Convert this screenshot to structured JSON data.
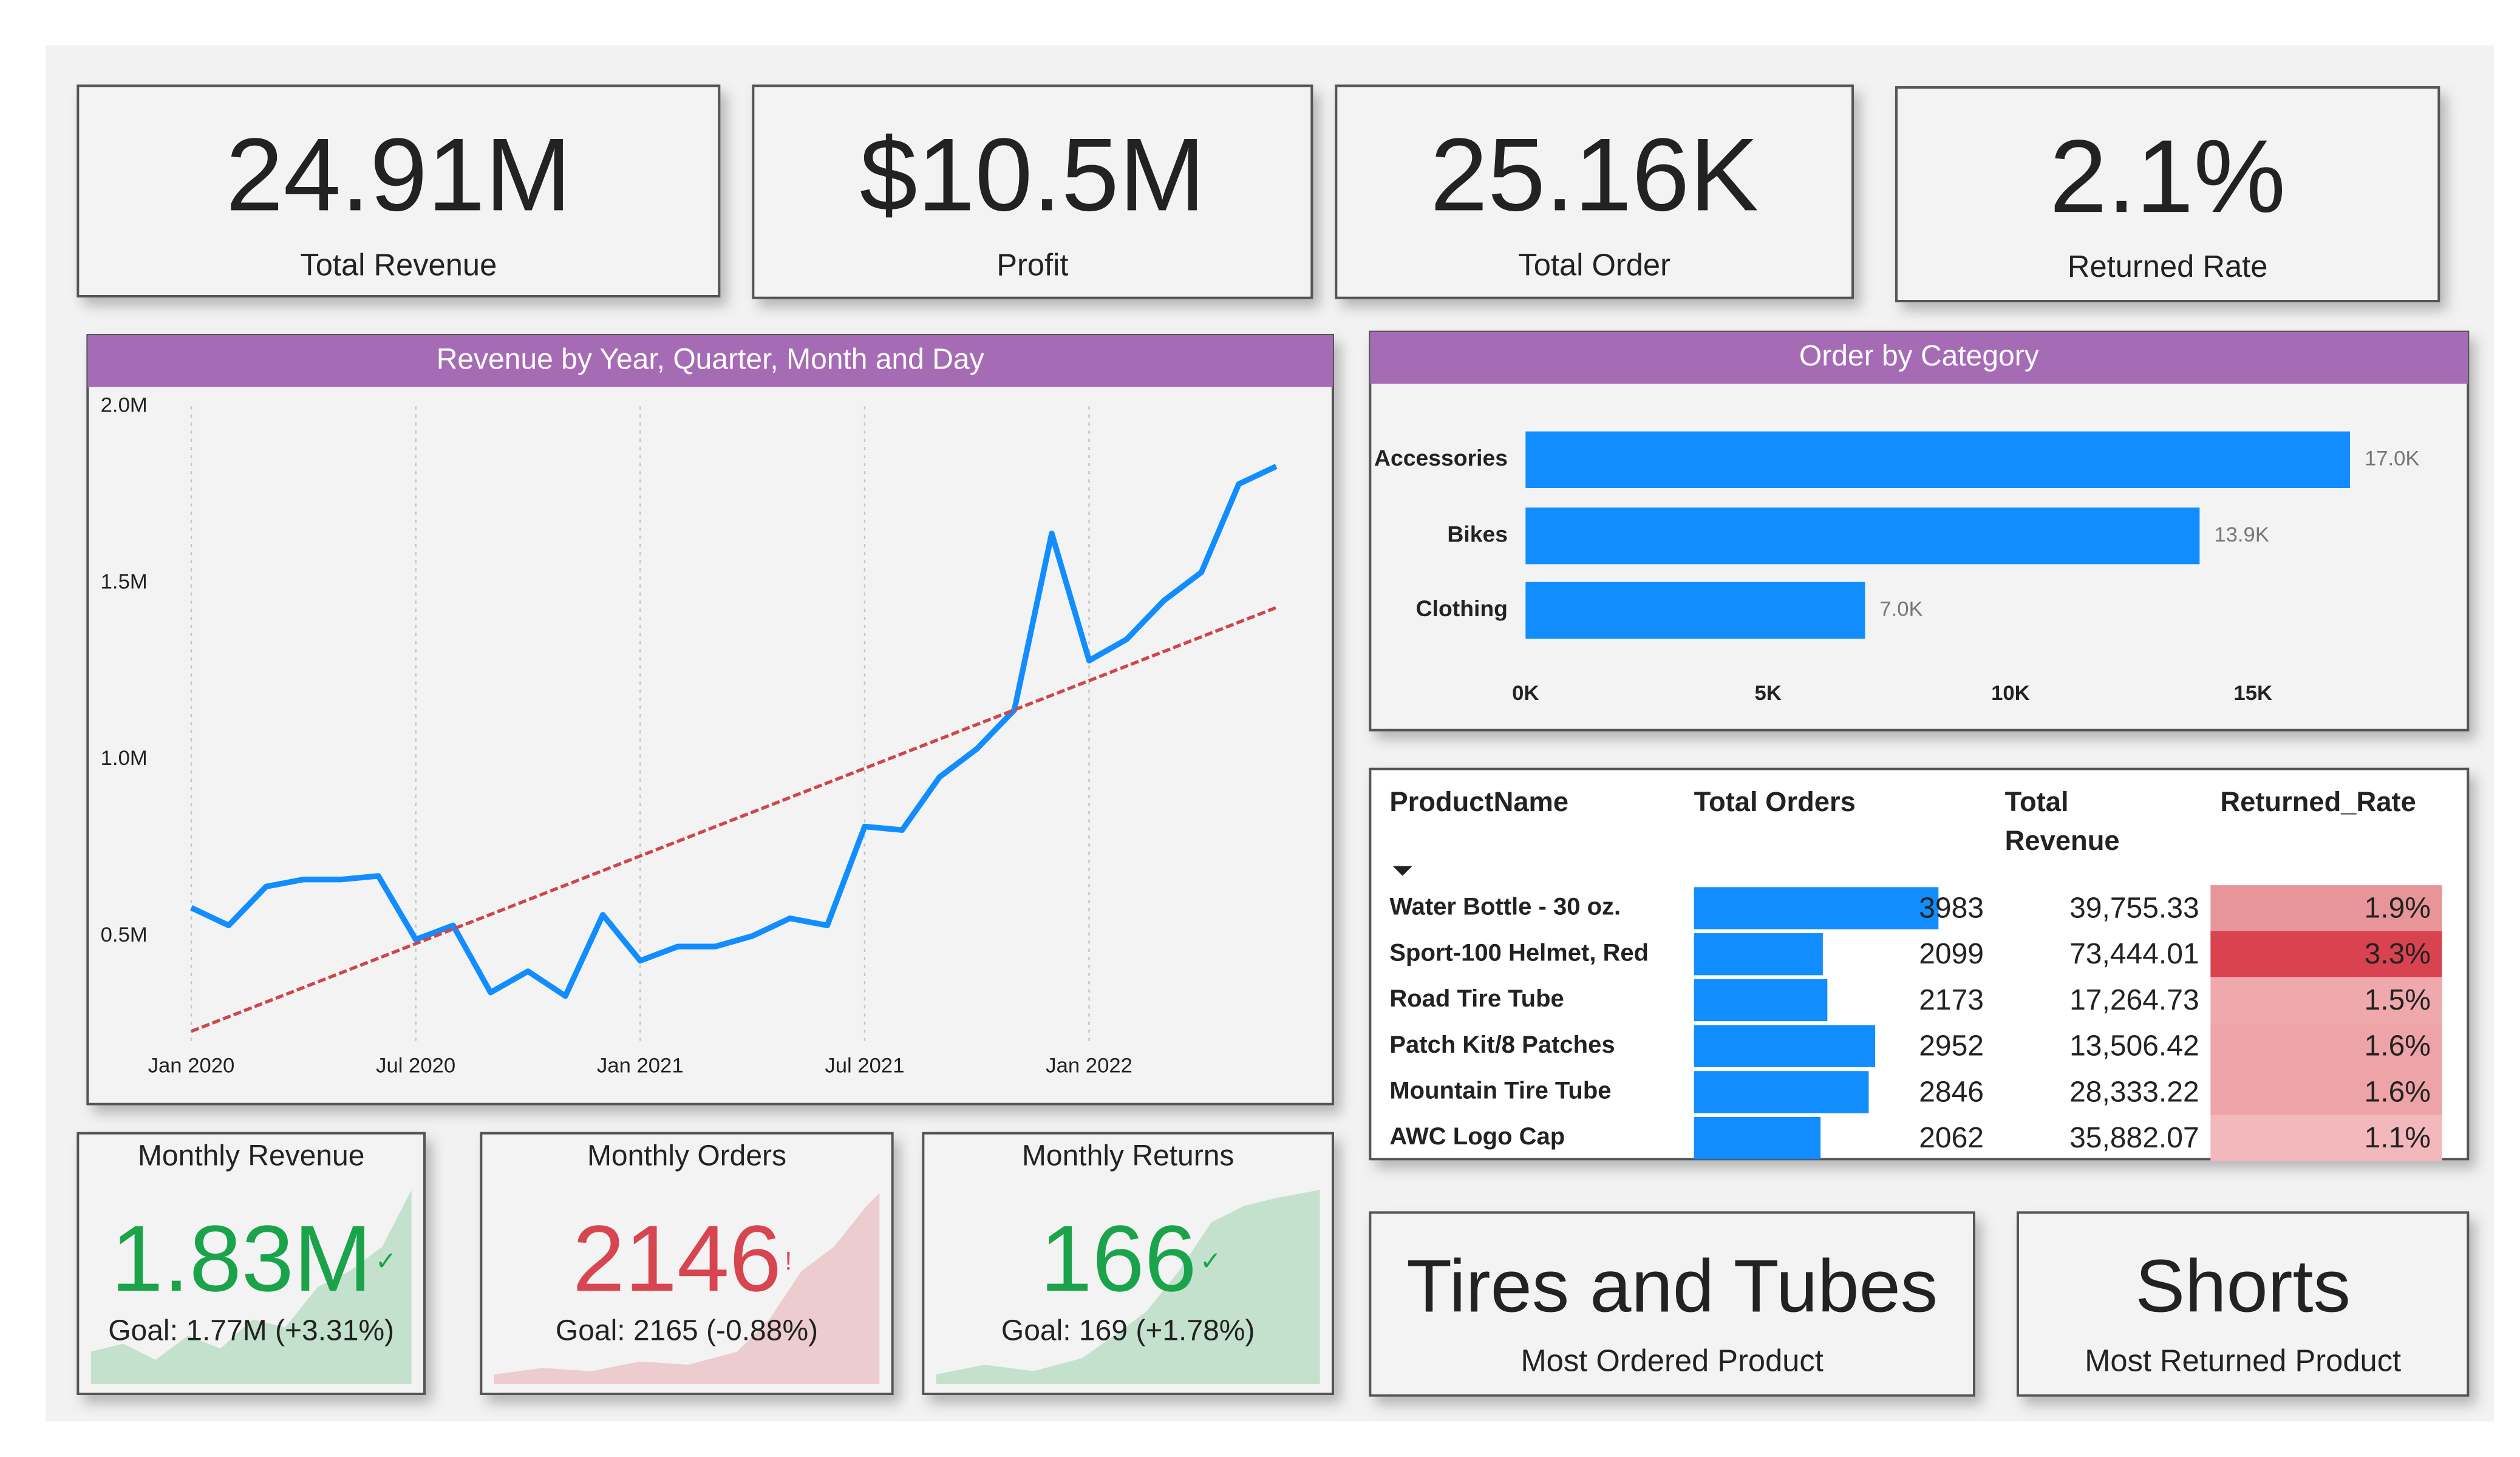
{
  "kpis": [
    {
      "value": "24.91M",
      "label": "Total Revenue"
    },
    {
      "value": "$10.5M",
      "label": "Profit"
    },
    {
      "value": "25.16K",
      "label": "Total Order"
    },
    {
      "value": "2.1%",
      "label": "Returned Rate"
    }
  ],
  "chart_data": [
    {
      "type": "line",
      "title": "Revenue by Year, Quarter, Month and Day",
      "categories": [
        "Jan 2020",
        null,
        null,
        null,
        null,
        null,
        "Jul 2020",
        null,
        null,
        null,
        null,
        null,
        "Jan 2021",
        null,
        null,
        null,
        null,
        null,
        "Jul 2021",
        null,
        null,
        null,
        null,
        null,
        "Jan 2022",
        null,
        null,
        null,
        null,
        null
      ],
      "values": [
        0.58,
        0.53,
        0.64,
        0.66,
        0.66,
        0.67,
        0.49,
        0.53,
        0.34,
        0.4,
        0.33,
        0.56,
        0.43,
        0.47,
        0.47,
        0.5,
        0.55,
        0.53,
        0.81,
        0.8,
        0.95,
        1.03,
        1.14,
        1.64,
        1.28,
        1.34,
        1.45,
        1.53,
        1.78,
        1.83
      ],
      "color": "#118dff",
      "trendline": [
        0.23,
        1.43
      ],
      "trend_color": "#d0454b",
      "ylim": [
        0.2,
        2.0
      ],
      "yticks": [
        {
          "value": 0.5,
          "label": "0.5M"
        },
        {
          "value": 1.0,
          "label": "1.0M"
        },
        {
          "value": 1.5,
          "label": "1.5M"
        },
        {
          "value": 2.0,
          "label": "2.0M"
        }
      ],
      "grid": true
    },
    {
      "type": "hbar",
      "title": "Order by Category",
      "categories": [
        "Accessories",
        "Bikes",
        "Clothing"
      ],
      "values": [
        17000,
        13900,
        7000
      ],
      "value_labels": [
        "17.0K",
        "13.9K",
        "7.0K"
      ],
      "color": "#118dff",
      "xlim": [
        0,
        19000
      ],
      "xticks": [
        {
          "value": 0,
          "label": "0K"
        },
        {
          "value": 5000,
          "label": "5K"
        },
        {
          "value": 10000,
          "label": "10K"
        },
        {
          "value": 15000,
          "label": "15K"
        }
      ]
    }
  ],
  "table": {
    "columns": [
      "ProductName",
      "Total Orders",
      "Total Revenue",
      "Returned_Rate"
    ],
    "rows": [
      [
        "Water Bottle - 30 oz.",
        3983,
        "39,755.33",
        "1.9%"
      ],
      [
        "Sport-100 Helmet, Red",
        2099,
        "73,444.01",
        "3.3%"
      ],
      [
        "Road Tire Tube",
        2173,
        "17,264.73",
        "1.5%"
      ],
      [
        "Patch Kit/8 Patches",
        2952,
        "13,506.42",
        "1.6%"
      ],
      [
        "Mountain Tire Tube",
        2846,
        "28,333.22",
        "1.6%"
      ],
      [
        "AWC Logo Cap",
        2062,
        "35,882.07",
        "1.1%"
      ]
    ],
    "bar_color": "#118dff",
    "rate_colors": [
      "#e8959a",
      "#d9434f",
      "#efa9ad",
      "#eda3a7",
      "#eda3a7",
      "#f2b8bc"
    ]
  },
  "goal_cards": [
    {
      "title": "Monthly Revenue",
      "value": "1.83M",
      "indicator": "✓",
      "goal": "Goal: 1.77M (+3.31%)",
      "color": "#1aa34a"
    },
    {
      "title": "Monthly Orders",
      "value": "2146",
      "indicator": "!",
      "goal": "Goal: 2165 (-0.88%)",
      "color": "#d64550"
    },
    {
      "title": "Monthly Returns",
      "value": "166",
      "indicator": "✓",
      "goal": "Goal: 169 (+1.78%)",
      "color": "#1aa34a"
    }
  ],
  "highlights": [
    {
      "value": "Tires and Tubes",
      "label": "Most Ordered Product"
    },
    {
      "value": "Shorts",
      "label": "Most Returned Product"
    }
  ]
}
